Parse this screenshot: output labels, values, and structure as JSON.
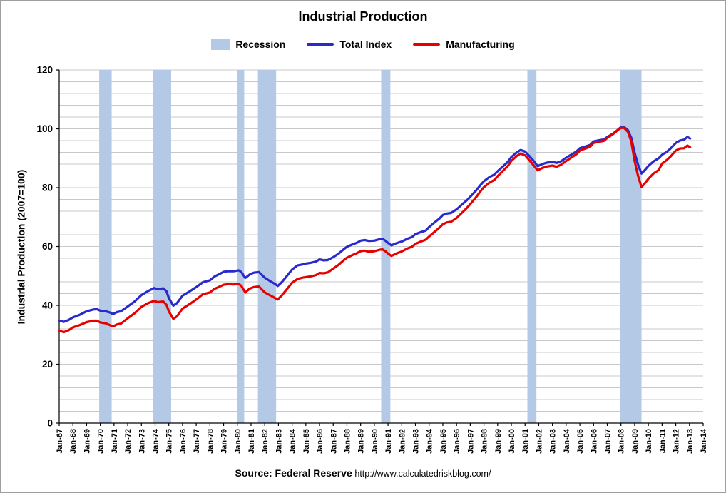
{
  "title": "Industrial Production",
  "legend": {
    "recession": "Recession",
    "total_index": "Total Index",
    "manufacturing": "Manufacturing"
  },
  "y_axis": {
    "title": "Industrial Production (2007=100)"
  },
  "source": {
    "label": "Source: Federal Reserve",
    "url_text": "http://www.calculatedriskblog.com/"
  },
  "colors": {
    "recession_band": "#b3c9e6",
    "total_index": "#2929cc",
    "manufacturing": "#e60000",
    "grid": "#c8c8c8",
    "axis": "#000000"
  },
  "chart_data": {
    "type": "line",
    "title": "Industrial Production",
    "ylabel": "Industrial Production (2007=100)",
    "ylim": [
      0,
      120
    ],
    "yticks": [
      0,
      20,
      40,
      60,
      80,
      100,
      120
    ],
    "grid_step": 4,
    "x_range": [
      1967,
      2014
    ],
    "x_tick_labels": [
      "Jan-67",
      "Jan-68",
      "Jan-69",
      "Jan-70",
      "Jan-71",
      "Jan-72",
      "Jan-73",
      "Jan-74",
      "Jan-75",
      "Jan-76",
      "Jan-77",
      "Jan-78",
      "Jan-79",
      "Jan-80",
      "Jan-81",
      "Jan-82",
      "Jan-83",
      "Jan-84",
      "Jan-85",
      "Jan-86",
      "Jan-87",
      "Jan-88",
      "Jan-89",
      "Jan-90",
      "Jan-91",
      "Jan-92",
      "Jan-93",
      "Jan-94",
      "Jan-95",
      "Jan-96",
      "Jan-97",
      "Jan-98",
      "Jan-99",
      "Jan-00",
      "Jan-01",
      "Jan-02",
      "Jan-03",
      "Jan-04",
      "Jan-05",
      "Jan-06",
      "Jan-07",
      "Jan-08",
      "Jan-09",
      "Jan-10",
      "Jan-11",
      "Jan-12",
      "Jan-13",
      "Jan-14"
    ],
    "recessions": [
      [
        1969.92,
        1970.83
      ],
      [
        1973.83,
        1975.17
      ],
      [
        1980.0,
        1980.5
      ],
      [
        1981.5,
        1982.83
      ],
      [
        1990.5,
        1991.17
      ],
      [
        2001.17,
        2001.83
      ],
      [
        2007.92,
        2009.5
      ]
    ],
    "x": [
      1967.0,
      1967.33,
      1967.67,
      1968.0,
      1968.5,
      1969.0,
      1969.5,
      1969.75,
      1970.0,
      1970.4,
      1970.75,
      1970.92,
      1971.2,
      1971.5,
      1972.0,
      1972.5,
      1973.0,
      1973.5,
      1973.92,
      1974.2,
      1974.6,
      1974.83,
      1975.0,
      1975.33,
      1975.6,
      1976.0,
      1976.5,
      1977.0,
      1977.5,
      1978.0,
      1978.33,
      1978.67,
      1979.0,
      1979.33,
      1979.75,
      1980.1,
      1980.3,
      1980.58,
      1980.9,
      1981.2,
      1981.58,
      1982.0,
      1982.4,
      1982.75,
      1982.95,
      1983.25,
      1983.6,
      1984.0,
      1984.4,
      1984.75,
      1985.0,
      1985.4,
      1985.75,
      1986.0,
      1986.3,
      1986.6,
      1987.0,
      1987.4,
      1987.75,
      1988.0,
      1988.4,
      1988.75,
      1989.0,
      1989.3,
      1989.6,
      1990.0,
      1990.4,
      1990.6,
      1990.8,
      1991.0,
      1991.25,
      1991.6,
      1992.0,
      1992.4,
      1992.75,
      1993.0,
      1993.4,
      1993.75,
      1994.0,
      1994.4,
      1994.75,
      1995.0,
      1995.3,
      1995.6,
      1996.0,
      1996.4,
      1996.75,
      1997.0,
      1997.4,
      1997.75,
      1998.0,
      1998.4,
      1998.75,
      1999.0,
      1999.4,
      1999.75,
      2000.0,
      2000.4,
      2000.67,
      2001.0,
      2001.3,
      2001.6,
      2001.92,
      2002.25,
      2002.6,
      2003.0,
      2003.3,
      2003.6,
      2004.0,
      2004.4,
      2004.75,
      2005.0,
      2005.4,
      2005.75,
      2006.0,
      2006.4,
      2006.75,
      2007.0,
      2007.4,
      2007.75,
      2007.95,
      2008.2,
      2008.5,
      2008.75,
      2009.0,
      2009.25,
      2009.5,
      2009.75,
      2010.0,
      2010.4,
      2010.75,
      2011.0,
      2011.3,
      2011.6,
      2012.0,
      2012.3,
      2012.6,
      2012.85,
      2013.05
    ],
    "series": [
      {
        "name": "Total Index",
        "values": [
          34.8,
          34.4,
          35.0,
          35.9,
          36.8,
          38.0,
          38.6,
          38.7,
          38.2,
          38.0,
          37.5,
          37.0,
          37.7,
          38.0,
          39.6,
          41.3,
          43.5,
          44.9,
          45.9,
          45.5,
          45.8,
          44.8,
          42.5,
          39.9,
          40.8,
          43.3,
          44.7,
          46.2,
          47.9,
          48.5,
          49.8,
          50.6,
          51.4,
          51.6,
          51.6,
          51.9,
          51.3,
          49.3,
          50.5,
          51.1,
          51.3,
          49.4,
          48.2,
          47.3,
          46.6,
          47.9,
          49.9,
          52.2,
          53.6,
          53.9,
          54.2,
          54.5,
          54.9,
          55.6,
          55.3,
          55.4,
          56.4,
          57.6,
          59.0,
          59.9,
          60.7,
          61.3,
          62.0,
          62.2,
          61.9,
          62.0,
          62.5,
          62.6,
          62.0,
          61.2,
          60.4,
          61.1,
          61.7,
          62.6,
          63.2,
          64.2,
          64.9,
          65.4,
          66.6,
          68.2,
          69.5,
          70.7,
          71.2,
          71.4,
          72.6,
          74.3,
          75.7,
          76.9,
          78.9,
          80.9,
          82.2,
          83.6,
          84.4,
          85.6,
          87.3,
          88.8,
          90.4,
          92.0,
          92.8,
          92.3,
          90.8,
          89.2,
          87.3,
          88.0,
          88.5,
          88.8,
          88.4,
          88.9,
          90.2,
          91.3,
          92.3,
          93.4,
          94.0,
          94.5,
          95.7,
          96.1,
          96.4,
          97.2,
          98.3,
          99.6,
          100.4,
          100.7,
          99.6,
          97.0,
          91.8,
          87.8,
          84.8,
          86.0,
          87.4,
          89.0,
          90.0,
          91.2,
          92.0,
          93.2,
          95.2,
          96.0,
          96.3,
          97.2,
          96.7
        ]
      },
      {
        "name": "Manufacturing",
        "values": [
          31.4,
          30.9,
          31.5,
          32.5,
          33.3,
          34.3,
          34.8,
          34.8,
          34.2,
          33.9,
          33.2,
          32.8,
          33.5,
          33.8,
          35.6,
          37.3,
          39.5,
          40.8,
          41.5,
          41.1,
          41.3,
          40.2,
          38.0,
          35.4,
          36.3,
          38.9,
          40.4,
          42.0,
          43.8,
          44.4,
          45.6,
          46.3,
          47.0,
          47.2,
          47.1,
          47.3,
          46.6,
          44.4,
          45.7,
          46.2,
          46.4,
          44.4,
          43.4,
          42.5,
          42.0,
          43.4,
          45.4,
          47.7,
          49.0,
          49.4,
          49.6,
          49.9,
          50.3,
          51.0,
          50.9,
          51.2,
          52.5,
          53.8,
          55.3,
          56.2,
          57.1,
          57.8,
          58.4,
          58.6,
          58.2,
          58.4,
          58.9,
          59.0,
          58.4,
          57.6,
          56.8,
          57.6,
          58.3,
          59.3,
          59.9,
          60.9,
          61.7,
          62.3,
          63.4,
          65.0,
          66.4,
          67.6,
          68.2,
          68.4,
          69.7,
          71.5,
          73.1,
          74.4,
          76.6,
          78.8,
          80.2,
          81.7,
          82.6,
          83.9,
          85.8,
          87.4,
          89.1,
          90.8,
          91.6,
          91.0,
          89.4,
          87.7,
          85.9,
          86.7,
          87.2,
          87.5,
          87.1,
          87.7,
          89.1,
          90.3,
          91.4,
          92.6,
          93.3,
          93.9,
          95.2,
          95.6,
          95.9,
          96.9,
          98.1,
          99.5,
          100.2,
          100.4,
          99.0,
          95.8,
          89.0,
          84.0,
          80.2,
          81.5,
          83.0,
          84.9,
          86.0,
          88.2,
          89.2,
          90.5,
          92.6,
          93.3,
          93.4,
          94.3,
          93.7
        ]
      }
    ],
    "legend_entries": [
      "Recession",
      "Total Index",
      "Manufacturing"
    ],
    "grid": "horizontal",
    "legend_position": "top-center"
  }
}
